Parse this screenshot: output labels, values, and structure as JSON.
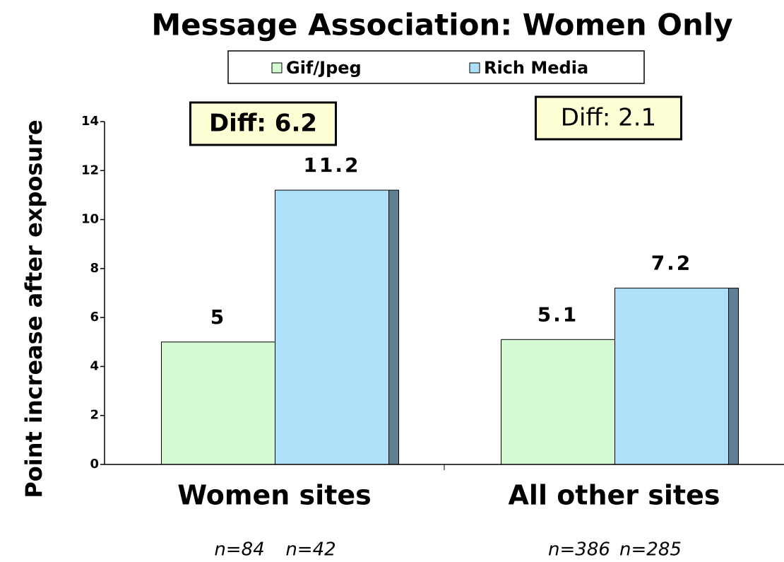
{
  "chart_data": {
    "type": "bar",
    "title": "Message Association: Women Only",
    "y_label": "Point increase after exposure",
    "categories": [
      "Women sites",
      "All other sites"
    ],
    "series": [
      {
        "name": "Gif/Jpeg",
        "color": "#d4fad4",
        "values": [
          5,
          5.1
        ]
      },
      {
        "name": "Rich Media",
        "color": "#aee0fa",
        "values": [
          11.2,
          7.2
        ]
      }
    ],
    "ylim": [
      0,
      14
    ],
    "yticks": [
      0,
      2,
      4,
      6,
      8,
      10,
      12,
      14
    ],
    "diff_labels": [
      "Diff: 6.2",
      "Diff: 2.1"
    ],
    "sample_labels": [
      [
        "n=84",
        "n=42"
      ],
      [
        "n=386",
        "n=285"
      ]
    ]
  }
}
